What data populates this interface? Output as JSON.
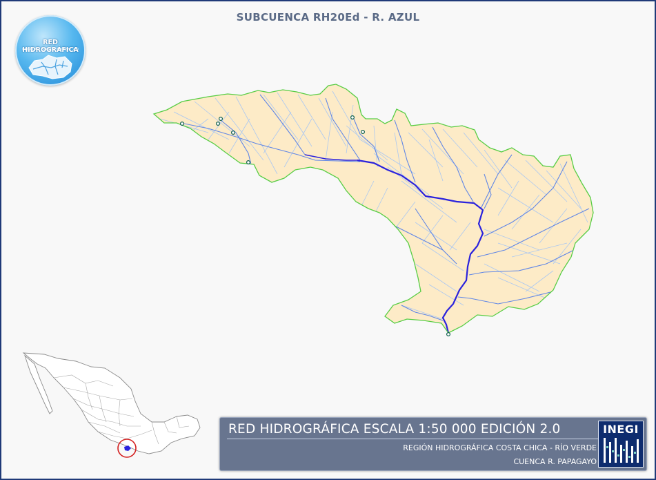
{
  "map": {
    "title": "SUBCUENCA RH20Ed - R. AZUL",
    "colors": {
      "basin_fill": "#fdebc7",
      "basin_border": "#57cd44",
      "main_river": "#2a22dd",
      "tributaries": "#5f86e6",
      "minor_streams": "#a9c7f2",
      "frame": "#1f3a78",
      "locator_circle": "#d42020"
    }
  },
  "logo": {
    "title": "RED HIDROGRÁFICA",
    "subtitle": "ESCALA 1:50 000 Edición: 2.0"
  },
  "panel": {
    "title": "RED HIDROGRÁFICA ESCALA 1:50 000 EDICIÓN 2.0",
    "region": "REGIÓN HIDROGRÁFICA COSTA CHICA - RÍO VERDE",
    "cuenca": "CUENCA R. PAPAGAYO",
    "institution": "INEGI"
  }
}
